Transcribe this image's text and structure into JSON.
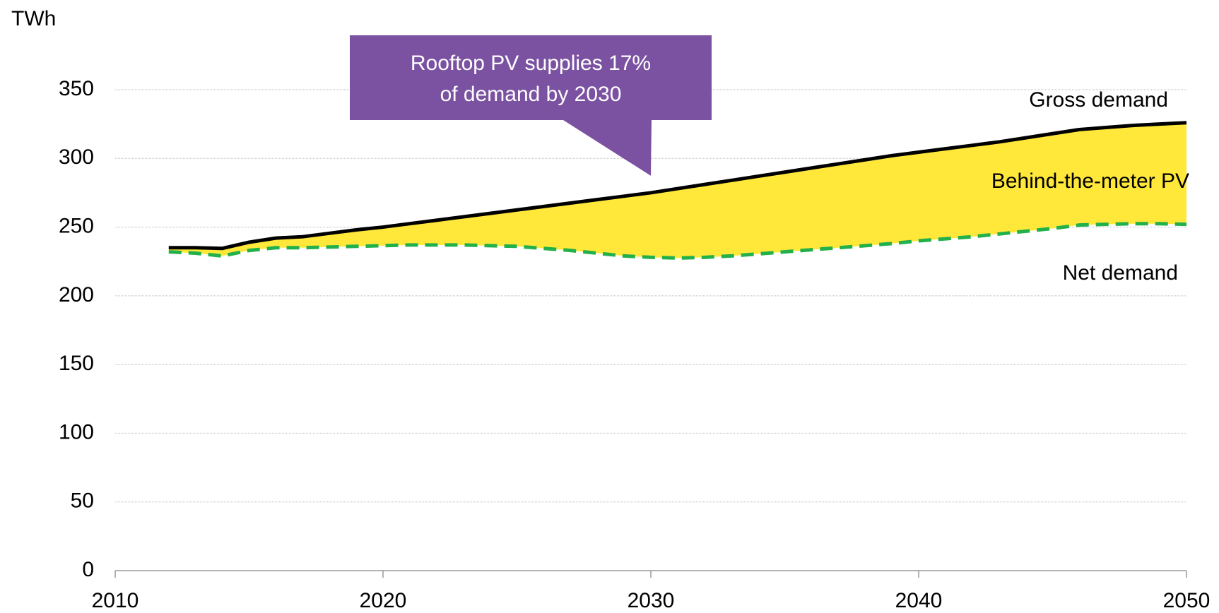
{
  "chart_data": {
    "type": "line",
    "y_axis_label": "TWh",
    "x": [
      2012,
      2013,
      2014,
      2015,
      2016,
      2017,
      2018,
      2019,
      2020,
      2021,
      2022,
      2023,
      2024,
      2025,
      2026,
      2027,
      2028,
      2029,
      2030,
      2031,
      2032,
      2033,
      2034,
      2035,
      2036,
      2037,
      2038,
      2039,
      2040,
      2041,
      2042,
      2043,
      2044,
      2045,
      2046,
      2047,
      2048,
      2049,
      2050
    ],
    "series": [
      {
        "name": "Net demand",
        "color": "#22b04b",
        "style": "dashed",
        "values": [
          232,
          231,
          229,
          233,
          235,
          235,
          235.5,
          236,
          236.5,
          237,
          237,
          237,
          236.5,
          236,
          234.5,
          233,
          231,
          229,
          228,
          227.5,
          228,
          229,
          230.5,
          232,
          233.5,
          235,
          236.5,
          238,
          240,
          241.5,
          243,
          245,
          247,
          249,
          251.5,
          252,
          252.5,
          252.5,
          252
        ]
      },
      {
        "name": "Behind-the-meter PV",
        "color": "#ffe83a",
        "style": "area",
        "stacked_on": "Net demand",
        "values": [
          3,
          4,
          5.5,
          6,
          7,
          8,
          10,
          12,
          13.5,
          15.5,
          18,
          20.5,
          23.5,
          26.5,
          30.5,
          34.5,
          39,
          43.5,
          47,
          50.5,
          53,
          55,
          56.5,
          58,
          59.5,
          61,
          62.5,
          64,
          64.5,
          65.5,
          66.5,
          67,
          68,
          69,
          69.5,
          70.5,
          71.5,
          72.5,
          74
        ]
      },
      {
        "name": "Gross demand",
        "color": "#000000",
        "style": "solid",
        "values": [
          235,
          235,
          234.5,
          239,
          242,
          243,
          245.5,
          248,
          250,
          252.5,
          255,
          257.5,
          260,
          262.5,
          265,
          267.5,
          270,
          272.5,
          275,
          278,
          281,
          284,
          287,
          290,
          293,
          296,
          299,
          302,
          304.5,
          307,
          309.5,
          312,
          315,
          318,
          321,
          322.5,
          324,
          325,
          326
        ]
      }
    ],
    "xlim": [
      2010,
      2050
    ],
    "xticks": [
      2010,
      2020,
      2030,
      2040,
      2050
    ],
    "ylim": [
      0,
      350
    ],
    "yticks": [
      0,
      50,
      100,
      150,
      200,
      250,
      300,
      350
    ],
    "grid": true,
    "annotation": {
      "lines": [
        "Rooftop PV supplies 17%",
        "of demand by 2030"
      ],
      "color": "#7b52a1",
      "x": 2030,
      "y": 275
    }
  }
}
